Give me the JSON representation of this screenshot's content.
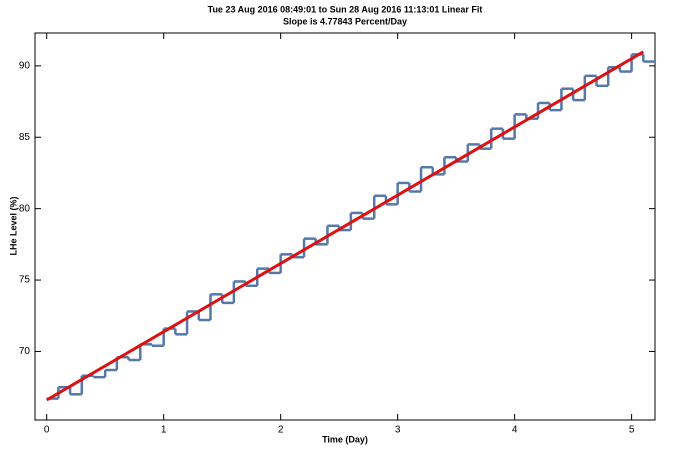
{
  "chart_data": {
    "type": "line",
    "title": "Tue 23 Aug 2016 08:49:01 to Sun 28 Aug 2016 11:13:01 Linear Fit",
    "subtitle": "Slope is 4.77843 Percent/Day",
    "x_label": "Time (Day)",
    "y_label": "LHe Level (%)",
    "xlim": [
      -0.1,
      5.2
    ],
    "ylim": [
      65.2,
      92.3
    ],
    "xticks": [
      0,
      1,
      2,
      3,
      4,
      5
    ],
    "yticks": [
      70,
      75,
      80,
      85,
      90
    ],
    "grid": false,
    "series": [
      {
        "color": "#5577aa",
        "step": true,
        "x": [
          0,
          0.1,
          0.2,
          0.3,
          0.4,
          0.5,
          0.6,
          0.7,
          0.8,
          0.9,
          1,
          1.1,
          1.2,
          1.3,
          1.4,
          1.5,
          1.6,
          1.7,
          1.8,
          1.9,
          2,
          2.1,
          2.2,
          2.3,
          2.4,
          2.5,
          2.6,
          2.7,
          2.8,
          2.9,
          3,
          3.1,
          3.2,
          3.3,
          3.4,
          3.5,
          3.6,
          3.7,
          3.8,
          3.9,
          4,
          4.1,
          4.2,
          4.3,
          4.4,
          4.5,
          4.6,
          4.7,
          4.8,
          4.9,
          5,
          5.1
        ],
        "values": [
          66.7,
          67.5,
          67.0,
          68.3,
          68.2,
          68.7,
          69.6,
          69.4,
          70.5,
          70.4,
          71.6,
          71.2,
          72.8,
          72.2,
          74.0,
          73.4,
          74.9,
          74.6,
          75.8,
          75.5,
          76.8,
          76.6,
          77.9,
          77.5,
          78.8,
          78.5,
          79.7,
          79.3,
          80.9,
          80.3,
          81.8,
          81.2,
          82.9,
          82.4,
          83.6,
          83.3,
          84.5,
          84.2,
          85.6,
          84.9,
          86.6,
          86.3,
          87.4,
          86.9,
          88.4,
          87.6,
          89.3,
          88.6,
          89.9,
          89.6,
          90.8,
          90.3
        ]
      },
      {
        "color": "#dd1111",
        "step": false,
        "x": [
          0,
          5.1
        ],
        "values": [
          66.6,
          90.98
        ]
      }
    ]
  }
}
